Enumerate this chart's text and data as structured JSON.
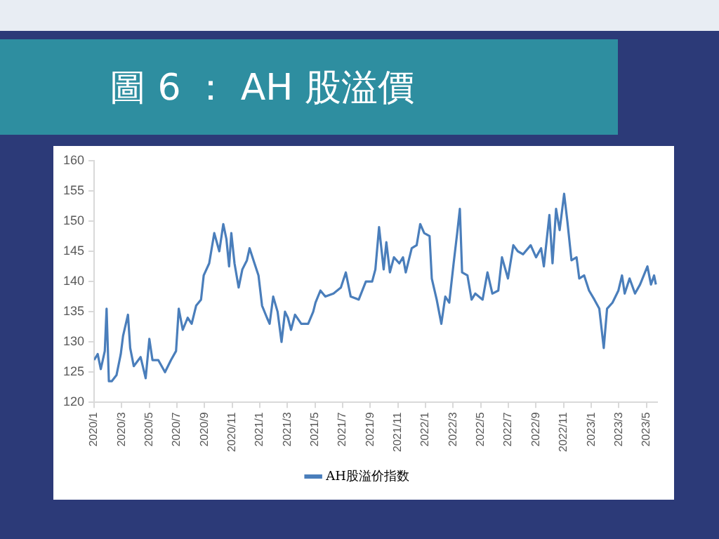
{
  "chart_data": {
    "type": "line",
    "title": "圖 6 ： AH 股溢價",
    "xlim": [
      "2020-01-01",
      "2023-05-25"
    ],
    "xticks": [
      {
        "value": "2020-01",
        "label": "2020/1"
      },
      {
        "value": "2020-03",
        "label": "2020/3"
      },
      {
        "value": "2020-05",
        "label": "2020/5"
      },
      {
        "value": "2020-07",
        "label": "2020/7"
      },
      {
        "value": "2020-09",
        "label": "2020/9"
      },
      {
        "value": "2020-11",
        "label": "2020/11"
      },
      {
        "value": "2021-01",
        "label": "2021/1"
      },
      {
        "value": "2021-03",
        "label": "2021/3"
      },
      {
        "value": "2021-05",
        "label": "2021/5"
      },
      {
        "value": "2021-07",
        "label": "2021/7"
      },
      {
        "value": "2021-09",
        "label": "2021/9"
      },
      {
        "value": "2021-11",
        "label": "2021/11"
      },
      {
        "value": "2022-01",
        "label": "2022/1"
      },
      {
        "value": "2022-03",
        "label": "2022/3"
      },
      {
        "value": "2022-05",
        "label": "2022/5"
      },
      {
        "value": "2022-07",
        "label": "2022/7"
      },
      {
        "value": "2022-09",
        "label": "2022/9"
      },
      {
        "value": "2022-11",
        "label": "2022/11"
      },
      {
        "value": "2023-01",
        "label": "2023/1"
      },
      {
        "value": "2023-03",
        "label": "2023/3"
      },
      {
        "value": "2023-05",
        "label": "2023/5"
      }
    ],
    "ylim": [
      120,
      160
    ],
    "yticks": [
      120,
      125,
      130,
      135,
      140,
      145,
      150,
      155,
      160
    ],
    "grid": false,
    "legend": "bottom",
    "marker": "none",
    "line_style": "solid",
    "series": [
      {
        "name": "AH股溢价指数",
        "color": "#4a7ebb",
        "x": [
          "2020-01-01",
          "2020-01-09",
          "2020-01-16",
          "2020-01-25",
          "2020-01-29",
          "2020-02-03",
          "2020-02-09",
          "2020-02-19",
          "2020-02-28",
          "2020-03-04",
          "2020-03-15",
          "2020-03-20",
          "2020-03-28",
          "2020-04-12",
          "2020-04-23",
          "2020-05-01",
          "2020-05-08",
          "2020-05-21",
          "2020-06-05",
          "2020-06-18",
          "2020-06-29",
          "2020-07-05",
          "2020-07-14",
          "2020-07-25",
          "2020-08-03",
          "2020-08-13",
          "2020-08-24",
          "2020-08-30",
          "2020-09-11",
          "2020-09-22",
          "2020-10-03",
          "2020-10-12",
          "2020-10-19",
          "2020-10-25",
          "2020-10-30",
          "2020-11-06",
          "2020-11-15",
          "2020-11-23",
          "2020-12-03",
          "2020-12-09",
          "2020-12-20",
          "2020-12-29",
          "2021-01-06",
          "2021-01-17",
          "2021-01-23",
          "2021-01-31",
          "2021-02-09",
          "2021-02-17",
          "2021-02-24",
          "2021-03-02",
          "2021-03-09",
          "2021-03-18",
          "2021-04-01",
          "2021-04-16",
          "2021-04-27",
          "2021-05-02",
          "2021-05-13",
          "2021-05-24",
          "2021-06-11",
          "2021-06-27",
          "2021-07-08",
          "2021-07-19",
          "2021-08-06",
          "2021-08-22",
          "2021-09-05",
          "2021-09-12",
          "2021-09-20",
          "2021-09-30",
          "2021-10-06",
          "2021-10-14",
          "2021-10-23",
          "2021-11-04",
          "2021-11-12",
          "2021-11-18",
          "2021-12-01",
          "2021-12-12",
          "2021-12-20",
          "2021-12-29",
          "2022-01-10",
          "2022-01-15",
          "2022-01-26",
          "2022-02-05",
          "2022-02-13",
          "2022-02-21",
          "2022-03-02",
          "2022-03-10",
          "2022-03-16",
          "2022-03-21",
          "2022-04-02",
          "2022-04-11",
          "2022-04-19",
          "2022-05-05",
          "2022-05-16",
          "2022-05-27",
          "2022-06-09",
          "2022-06-17",
          "2022-06-30",
          "2022-07-12",
          "2022-07-22",
          "2022-08-03",
          "2022-08-20",
          "2022-09-01",
          "2022-09-12",
          "2022-09-18",
          "2022-09-30",
          "2022-10-07",
          "2022-10-15",
          "2022-10-23",
          "2022-11-02",
          "2022-11-09",
          "2022-11-18",
          "2022-11-29",
          "2022-12-05",
          "2022-12-16",
          "2022-12-27",
          "2023-01-08",
          "2023-01-19",
          "2023-01-29",
          "2023-02-05",
          "2023-02-16",
          "2023-02-28",
          "2023-03-08",
          "2023-03-14",
          "2023-03-25",
          "2023-04-06",
          "2023-04-17",
          "2023-05-03",
          "2023-05-11",
          "2023-05-18",
          "2023-05-22"
        ],
        "values": [
          127,
          128,
          125.5,
          128.5,
          135.5,
          123.5,
          123.5,
          124.5,
          128,
          131,
          134.5,
          129,
          126,
          127.5,
          124,
          130.5,
          127,
          127,
          125,
          127,
          128.5,
          135.5,
          132,
          134,
          133,
          136,
          137,
          141,
          143,
          148,
          145,
          149.5,
          147,
          142.5,
          148,
          143,
          139,
          142,
          143.5,
          145.5,
          143,
          141,
          136,
          134,
          133,
          137.5,
          135,
          130,
          135,
          134,
          132,
          134.5,
          133,
          133,
          135,
          136.5,
          138.5,
          137.5,
          138,
          139,
          141.5,
          137.5,
          137,
          140,
          140,
          142,
          149,
          142,
          146.5,
          141.5,
          144,
          143,
          144,
          141.5,
          145.5,
          146,
          149.5,
          148,
          147.5,
          140.5,
          137,
          133,
          137.5,
          136.5,
          143,
          148,
          152,
          141.5,
          141,
          137,
          138,
          137,
          141.5,
          138,
          138.5,
          144,
          140.5,
          146,
          145,
          144.5,
          146,
          144,
          145.5,
          142.5,
          151,
          143,
          152,
          148.5,
          154.5,
          150,
          143.5,
          144,
          140.5,
          141,
          138.5,
          137,
          135.5,
          129,
          135.5,
          136.5,
          138.5,
          141,
          138,
          140.5,
          138,
          139.5,
          142.5,
          139.5,
          141,
          139.5
        ]
      }
    ]
  }
}
